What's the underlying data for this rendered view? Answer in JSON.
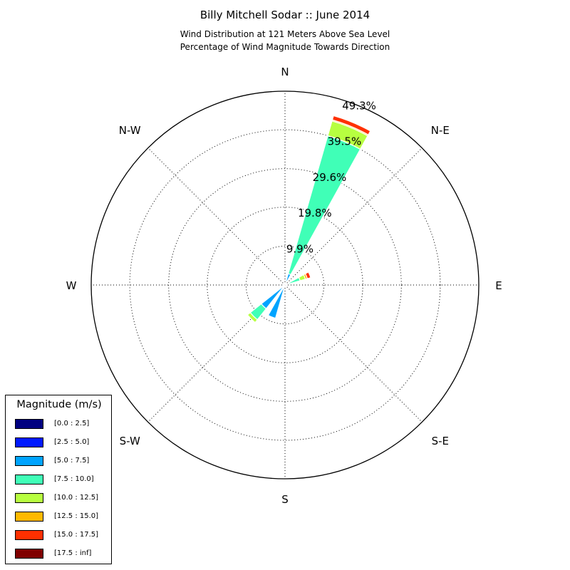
{
  "chart_data": {
    "type": "windrose",
    "title": "Billy Mitchell Sodar :: June 2014",
    "subtitle_lines": [
      "Wind Distribution at 121 Meters Above Sea Level",
      "Percentage of Wind Magnitude Towards Direction"
    ],
    "directions": [
      {
        "label": "N",
        "angle": 0
      },
      {
        "label": "N-E",
        "angle": 45
      },
      {
        "label": "E",
        "angle": 90
      },
      {
        "label": "S-E",
        "angle": 135
      },
      {
        "label": "S",
        "angle": 180
      },
      {
        "label": "S-W",
        "angle": 225
      },
      {
        "label": "W",
        "angle": 270
      },
      {
        "label": "N-W",
        "angle": 315
      }
    ],
    "radial_ticks": [
      {
        "value": 9.9,
        "label": "9.9%"
      },
      {
        "value": 19.8,
        "label": "19.8%"
      },
      {
        "value": 29.6,
        "label": "29.6%"
      },
      {
        "value": 39.5,
        "label": "39.5%"
      },
      {
        "value": 49.3,
        "label": "49.3%"
      }
    ],
    "r_max": 49.3,
    "grid": true,
    "legend_title": "Magnitude (m/s)",
    "legend_position": "lower-left",
    "bins": [
      {
        "label": "[0.0 : 2.5]",
        "color": "#000080"
      },
      {
        "label": "[2.5 : 5.0]",
        "color": "#0019ff"
      },
      {
        "label": "[5.0 : 7.5]",
        "color": "#00a4ff"
      },
      {
        "label": "[7.5 : 10.0]",
        "color": "#40ffb7"
      },
      {
        "label": "[10.0 : 12.5]",
        "color": "#b7ff40"
      },
      {
        "label": "[12.5 : 15.0]",
        "color": "#ffb900"
      },
      {
        "label": "[15.0 : 17.5]",
        "color": "#ff3000"
      },
      {
        "label": "[17.5 : inf]",
        "color": "#800000"
      }
    ],
    "sectors": [
      {
        "direction": 22.5,
        "values": [
          0.0,
          0.2,
          2.8,
          36.5,
          3.9,
          0.3,
          1.1,
          0.0
        ]
      },
      {
        "direction": 67.5,
        "values": [
          0.0,
          0.2,
          0.8,
          3.0,
          1.4,
          0.5,
          0.9,
          0.0
        ]
      },
      {
        "direction": 202.5,
        "values": [
          0.0,
          0.5,
          8.3,
          0.0,
          0.0,
          0.0,
          0.0,
          0.0
        ]
      },
      {
        "direction": 225,
        "values": [
          0.0,
          0.5,
          7.2,
          3.6,
          0.9,
          0.0,
          0.0,
          0.0
        ]
      },
      {
        "direction": 270,
        "values": [
          0.0,
          0.3,
          0.0,
          0.0,
          0.0,
          0.0,
          0.0,
          0.0
        ]
      }
    ]
  }
}
